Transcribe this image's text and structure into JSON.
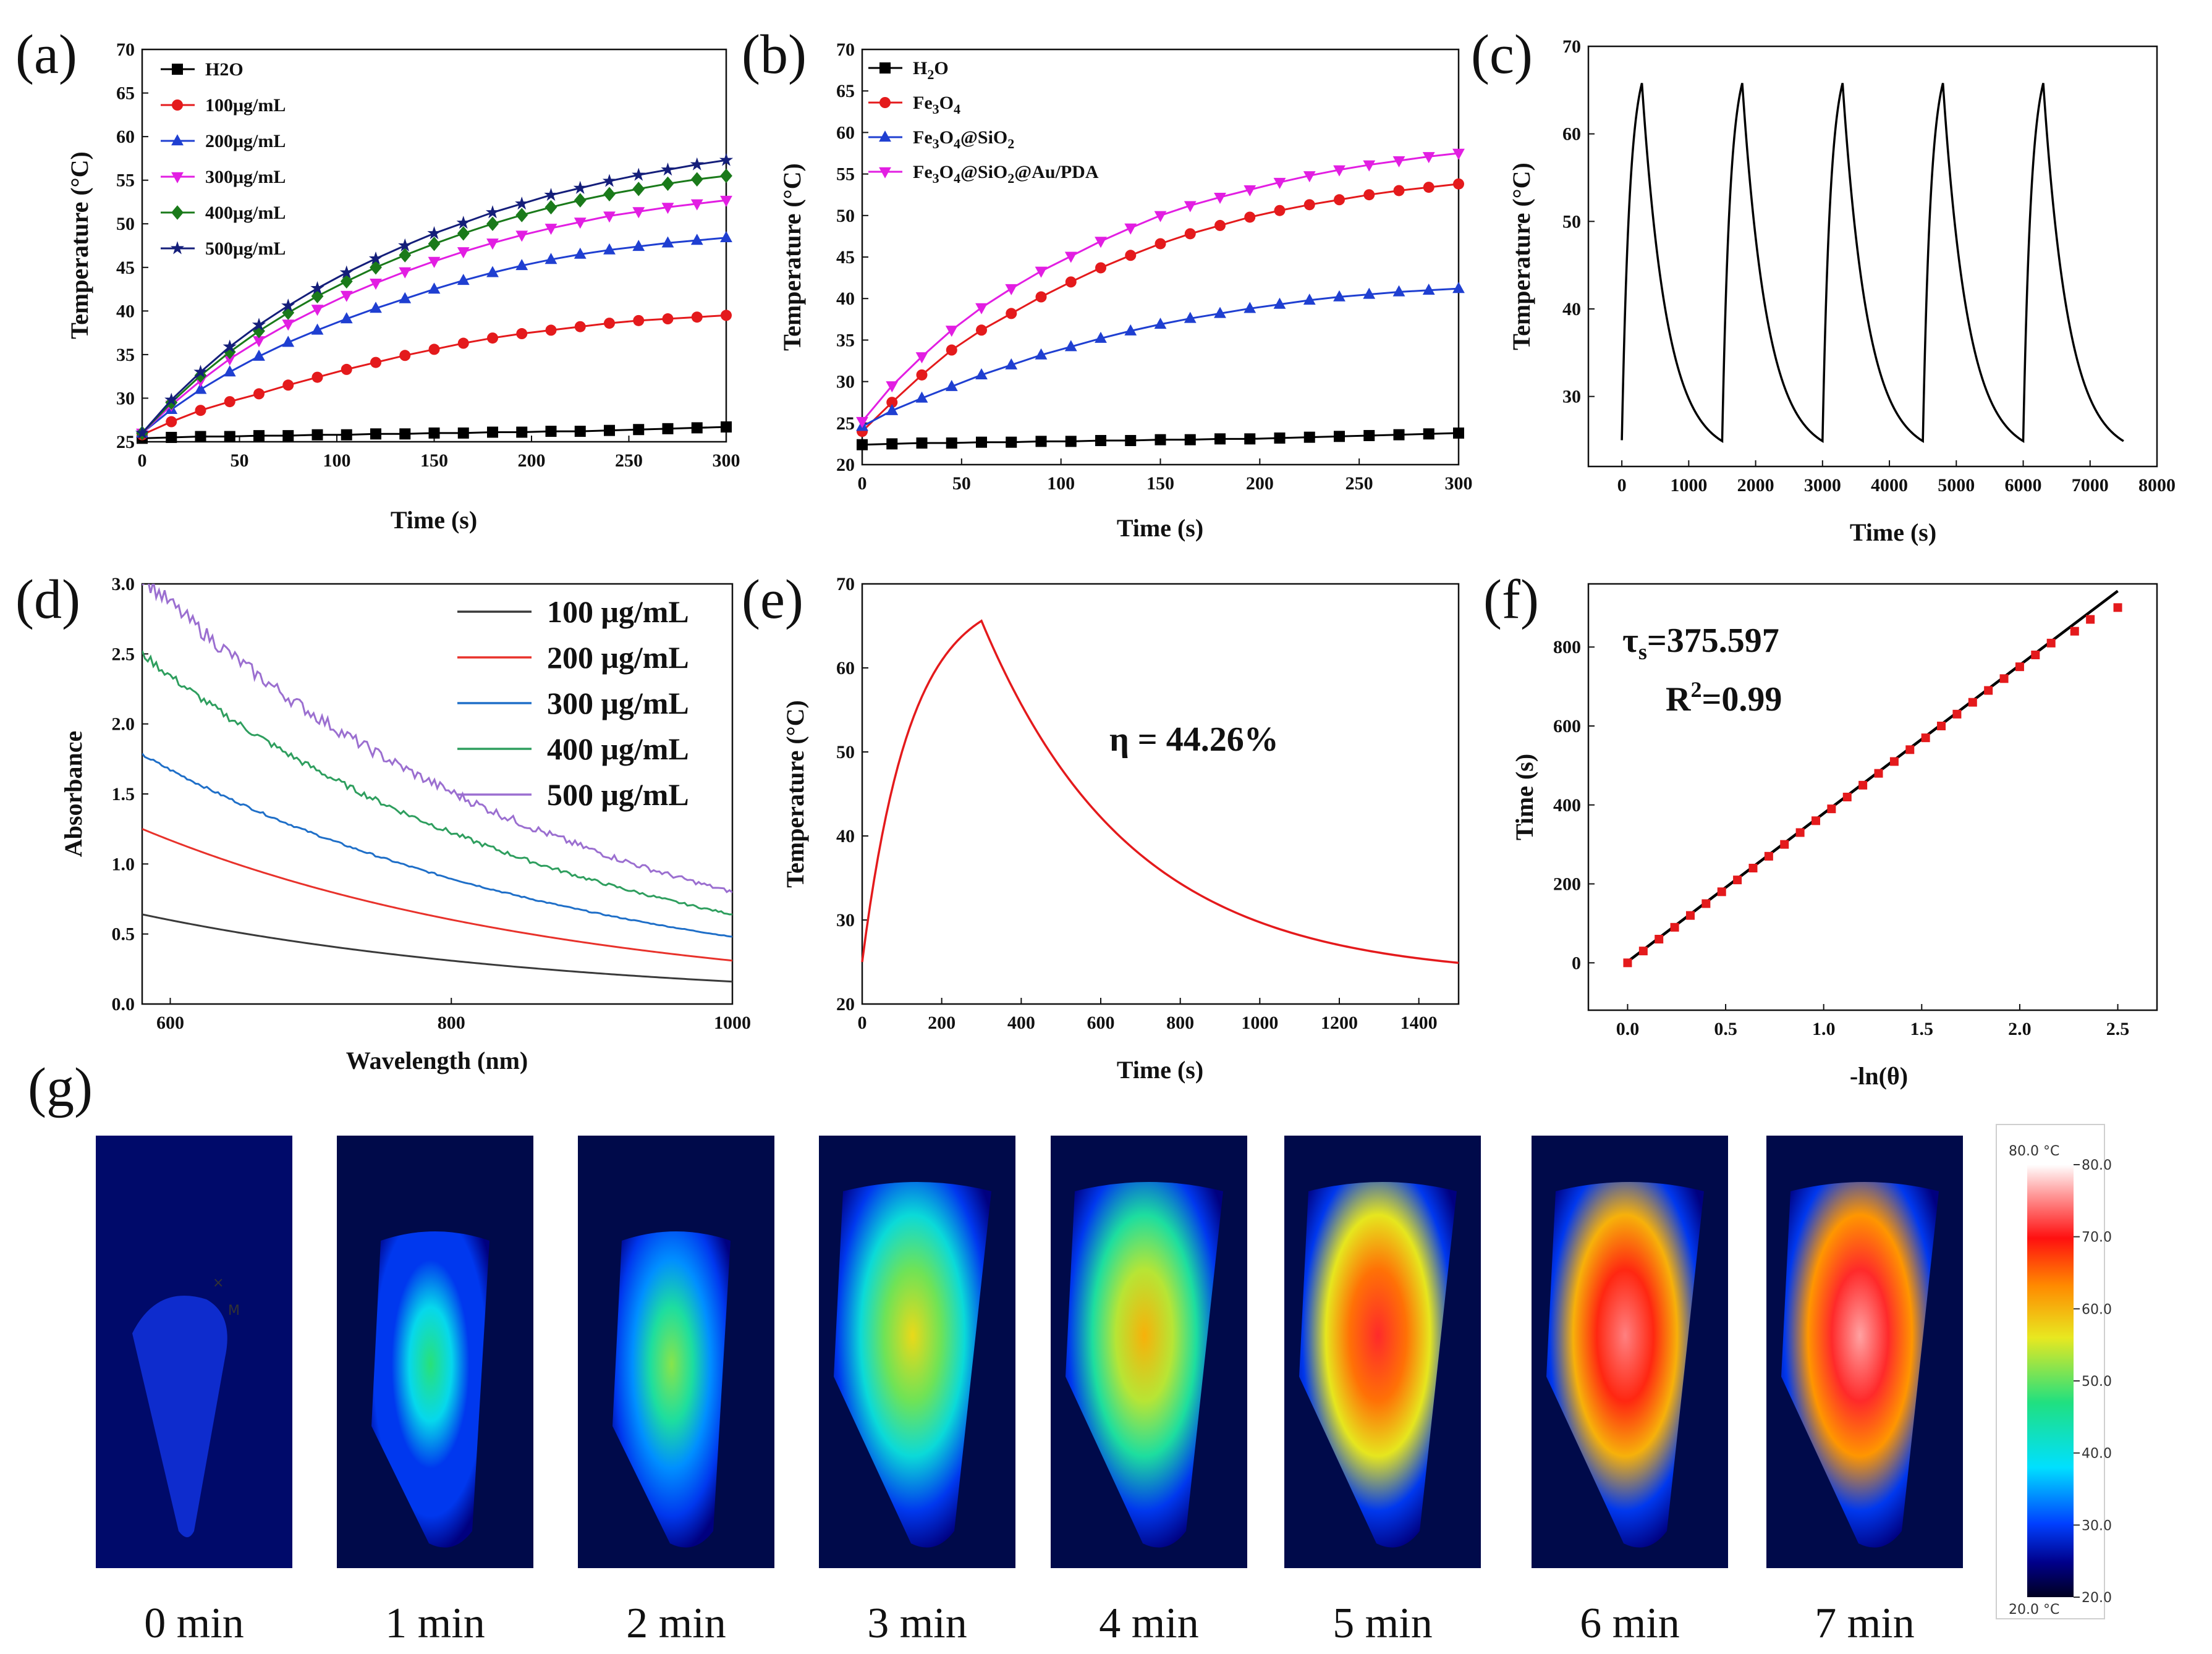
{
  "chart_data": [
    {
      "panel": "(a)",
      "type": "line",
      "xlabel": "Time (s)",
      "ylabel": "Temperature (°C)",
      "xlim": [
        0,
        300
      ],
      "ylim": [
        25,
        70
      ],
      "xticks": [
        "0",
        "50",
        "100",
        "150",
        "200",
        "250",
        "300"
      ],
      "yticks": [
        "25",
        "30",
        "35",
        "40",
        "45",
        "50",
        "55",
        "60",
        "65",
        "70"
      ],
      "x": [
        0,
        15,
        30,
        45,
        60,
        75,
        90,
        105,
        120,
        135,
        150,
        165,
        180,
        195,
        210,
        225,
        240,
        255,
        270,
        285,
        300
      ],
      "series": [
        {
          "name": "H2O",
          "color": "#000000",
          "marker": "square",
          "values": [
            25.4,
            25.5,
            25.6,
            25.6,
            25.7,
            25.7,
            25.8,
            25.8,
            25.9,
            25.9,
            26.0,
            26.0,
            26.1,
            26.1,
            26.2,
            26.2,
            26.3,
            26.4,
            26.5,
            26.6,
            26.7
          ]
        },
        {
          "name": "100μg/mL",
          "color": "#e41a1c",
          "marker": "circle",
          "values": [
            25.8,
            27.3,
            28.6,
            29.6,
            30.5,
            31.5,
            32.4,
            33.3,
            34.1,
            34.9,
            35.6,
            36.3,
            36.9,
            37.4,
            37.8,
            38.2,
            38.6,
            38.9,
            39.1,
            39.3,
            39.5
          ]
        },
        {
          "name": "200μg/mL",
          "color": "#1f3fd1",
          "marker": "triangle",
          "values": [
            26.0,
            28.7,
            31.0,
            33.0,
            34.8,
            36.4,
            37.8,
            39.1,
            40.3,
            41.4,
            42.5,
            43.5,
            44.4,
            45.2,
            45.9,
            46.5,
            47.0,
            47.4,
            47.8,
            48.1,
            48.4
          ]
        },
        {
          "name": "300μg/mL",
          "color": "#e21ee2",
          "marker": "triangle-down",
          "values": [
            26.0,
            29.2,
            32.0,
            34.5,
            36.6,
            38.5,
            40.2,
            41.8,
            43.2,
            44.5,
            45.7,
            46.8,
            47.8,
            48.7,
            49.5,
            50.2,
            50.9,
            51.4,
            51.9,
            52.3,
            52.7
          ]
        },
        {
          "name": "400μg/mL",
          "color": "#1a7a1a",
          "marker": "diamond",
          "values": [
            26.0,
            29.5,
            32.6,
            35.3,
            37.7,
            39.8,
            41.7,
            43.4,
            45.0,
            46.4,
            47.7,
            48.9,
            50.0,
            51.0,
            51.9,
            52.7,
            53.4,
            54.0,
            54.6,
            55.1,
            55.5
          ]
        },
        {
          "name": "500μg/mL",
          "color": "#141e7a",
          "marker": "star",
          "values": [
            26.0,
            29.8,
            33.0,
            35.9,
            38.4,
            40.6,
            42.6,
            44.4,
            46.0,
            47.5,
            48.9,
            50.1,
            51.3,
            52.3,
            53.3,
            54.1,
            54.9,
            55.6,
            56.2,
            56.8,
            57.3
          ]
        }
      ]
    },
    {
      "panel": "(b)",
      "type": "line",
      "xlabel": "Time (s)",
      "ylabel": "Temperature (°C)",
      "xlim": [
        0,
        300
      ],
      "ylim": [
        20,
        70
      ],
      "xticks": [
        "0",
        "50",
        "100",
        "150",
        "200",
        "250",
        "300"
      ],
      "yticks": [
        "20",
        "25",
        "30",
        "35",
        "40",
        "45",
        "50",
        "55",
        "60",
        "65",
        "70"
      ],
      "x": [
        0,
        15,
        30,
        45,
        60,
        75,
        90,
        105,
        120,
        135,
        150,
        165,
        180,
        195,
        210,
        225,
        240,
        255,
        270,
        285,
        300
      ],
      "series": [
        {
          "name": "H2O",
          "label_parts": [
            [
              "H",
              0
            ],
            [
              "2",
              1
            ],
            [
              "O",
              0
            ]
          ],
          "color": "#000000",
          "marker": "square",
          "values": [
            22.4,
            22.5,
            22.6,
            22.6,
            22.7,
            22.7,
            22.8,
            22.8,
            22.9,
            22.9,
            23.0,
            23.0,
            23.1,
            23.1,
            23.2,
            23.3,
            23.4,
            23.5,
            23.6,
            23.7,
            23.8
          ]
        },
        {
          "name": "Fe3O4",
          "label_parts": [
            [
              "Fe",
              0
            ],
            [
              "3",
              1
            ],
            [
              "O",
              0
            ],
            [
              "4",
              1
            ]
          ],
          "color": "#e41a1c",
          "marker": "circle",
          "values": [
            24.0,
            27.5,
            30.8,
            33.8,
            36.2,
            38.2,
            40.2,
            42.0,
            43.7,
            45.2,
            46.6,
            47.8,
            48.8,
            49.8,
            50.6,
            51.3,
            51.9,
            52.5,
            53.0,
            53.4,
            53.8
          ]
        },
        {
          "name": "Fe3O4@SiO2",
          "label_parts": [
            [
              "Fe",
              0
            ],
            [
              "3",
              1
            ],
            [
              "O",
              0
            ],
            [
              "4",
              1
            ],
            [
              "@SiO",
              0
            ],
            [
              "2",
              1
            ]
          ],
          "color": "#1f3fd1",
          "marker": "triangle",
          "values": [
            24.6,
            26.5,
            28.0,
            29.4,
            30.8,
            32.0,
            33.2,
            34.2,
            35.2,
            36.1,
            36.9,
            37.6,
            38.2,
            38.8,
            39.3,
            39.8,
            40.2,
            40.5,
            40.8,
            41.0,
            41.2
          ]
        },
        {
          "name": "Fe3O4@SiO2@Au/PDA",
          "label_parts": [
            [
              "Fe",
              0
            ],
            [
              "3",
              1
            ],
            [
              "O",
              0
            ],
            [
              "4",
              1
            ],
            [
              "@SiO",
              0
            ],
            [
              "2",
              1
            ],
            [
              "@Au/PDA",
              0
            ]
          ],
          "color": "#e21ee2",
          "marker": "triangle-down",
          "values": [
            25.2,
            29.5,
            33.0,
            36.2,
            38.9,
            41.2,
            43.3,
            45.1,
            46.9,
            48.5,
            50.0,
            51.2,
            52.2,
            53.1,
            54.0,
            54.8,
            55.5,
            56.1,
            56.6,
            57.1,
            57.5
          ]
        }
      ]
    },
    {
      "panel": "(c)",
      "type": "line",
      "xlabel": "Time (s)",
      "ylabel": "Temperature (°C)",
      "xlim": [
        -500,
        8000
      ],
      "ylim": [
        22,
        70
      ],
      "xticks": [
        "0",
        "1000",
        "2000",
        "3000",
        "4000",
        "5000",
        "6000",
        "7000",
        "8000"
      ],
      "yticks": [
        "30",
        "40",
        "50",
        "60",
        "70"
      ],
      "cycles": 5,
      "cycle_period_s": 1500,
      "heating_s": 300,
      "start_temp": 25.0,
      "peak_temp": 65.8,
      "end_temp": 24.9,
      "color": "#000000"
    },
    {
      "panel": "(d)",
      "type": "line",
      "xlabel": "Wavelength (nm)",
      "ylabel": "Absorbance",
      "xlim": [
        580,
        1000
      ],
      "ylim": [
        0,
        3.0
      ],
      "xticks": [
        "600",
        "800",
        "1000"
      ],
      "yticks": [
        "0.0",
        "0.5",
        "1.0",
        "1.5",
        "2.0",
        "2.5",
        "3.0"
      ],
      "series": [
        {
          "name": "100 μg/mL",
          "color": "#3a3a3a",
          "start": 0.64,
          "end": 0.16,
          "noise": 0.0
        },
        {
          "name": "200 μg/mL",
          "color": "#e8322b",
          "start": 1.25,
          "end": 0.31,
          "noise": 0.0
        },
        {
          "name": "300 μg/mL",
          "color": "#1f6fc8",
          "start": 1.78,
          "end": 0.48,
          "noise": 0.01
        },
        {
          "name": "400 μg/mL",
          "color": "#2e9e5e",
          "start": 2.5,
          "end": 0.64,
          "noise": 0.03
        },
        {
          "name": "500 μg/mL",
          "color": "#9b6fd0",
          "start": 3.05,
          "end": 0.8,
          "noise": 0.06
        }
      ]
    },
    {
      "panel": "(e)",
      "type": "line",
      "xlabel": "Time (s)",
      "ylabel": "Temperature (°C)",
      "xlim": [
        0,
        1500
      ],
      "ylim": [
        20,
        70
      ],
      "xticks": [
        "0",
        "200",
        "400",
        "600",
        "800",
        "1000",
        "1200",
        "1400"
      ],
      "yticks": [
        "20",
        "30",
        "40",
        "50",
        "60",
        "70"
      ],
      "annotation": "η = 44.26%",
      "start_temp": 25.0,
      "peak_time": 300,
      "peak_temp": 65.6,
      "end_temp": 24.9,
      "color": "#e41a1c"
    },
    {
      "panel": "(f)",
      "type": "scatter",
      "xlabel": "-ln(θ)",
      "ylabel": "Time (s)",
      "xlim": [
        -0.2,
        2.7
      ],
      "ylim": [
        -120,
        960
      ],
      "xticks": [
        "0.0",
        "0.5",
        "1.0",
        "1.5",
        "2.0",
        "2.5"
      ],
      "yticks": [
        "0",
        "200",
        "400",
        "600",
        "800"
      ],
      "tau_label": "τ",
      "tau_sub": "s",
      "tau_value": "=375.597",
      "r2_label": "R",
      "r2_sup": "2",
      "r2_value": "=0.99",
      "fit": {
        "slope": 375.6,
        "intercept": 3,
        "x0": 0.0,
        "x1": 2.5
      },
      "points_x": [
        0.0,
        0.08,
        0.16,
        0.24,
        0.32,
        0.4,
        0.48,
        0.56,
        0.64,
        0.72,
        0.8,
        0.88,
        0.96,
        1.04,
        1.12,
        1.2,
        1.28,
        1.36,
        1.44,
        1.52,
        1.6,
        1.68,
        1.76,
        1.84,
        1.92,
        2.0,
        2.08,
        2.16,
        2.28,
        2.36,
        2.5
      ],
      "points_y": [
        0,
        30,
        60,
        90,
        120,
        150,
        180,
        210,
        240,
        270,
        300,
        330,
        360,
        390,
        420,
        450,
        480,
        510,
        540,
        570,
        600,
        630,
        660,
        690,
        720,
        750,
        780,
        810,
        840,
        870,
        900
      ],
      "color": "#e41a1c"
    }
  ],
  "panel_labels": [
    "(a)",
    "(b)",
    "(c)",
    "(d)",
    "(e)",
    "(f)",
    "(g)"
  ],
  "thermal": {
    "times": [
      "0 min",
      "1 min",
      "2 min",
      "3 min",
      "4 min",
      "5 min",
      "6 min",
      "7 min"
    ],
    "peak_temps": [
      32,
      44,
      48,
      53,
      56,
      66,
      70,
      72
    ],
    "marker_char": "×",
    "marker_label": "M",
    "colorbar": {
      "top_label": "80.0 °C",
      "bottom_label": "20.0 °C",
      "ticks": [
        "80.0",
        "70.0",
        "60.0",
        "50.0",
        "40.0",
        "30.0",
        "20.0"
      ]
    }
  }
}
